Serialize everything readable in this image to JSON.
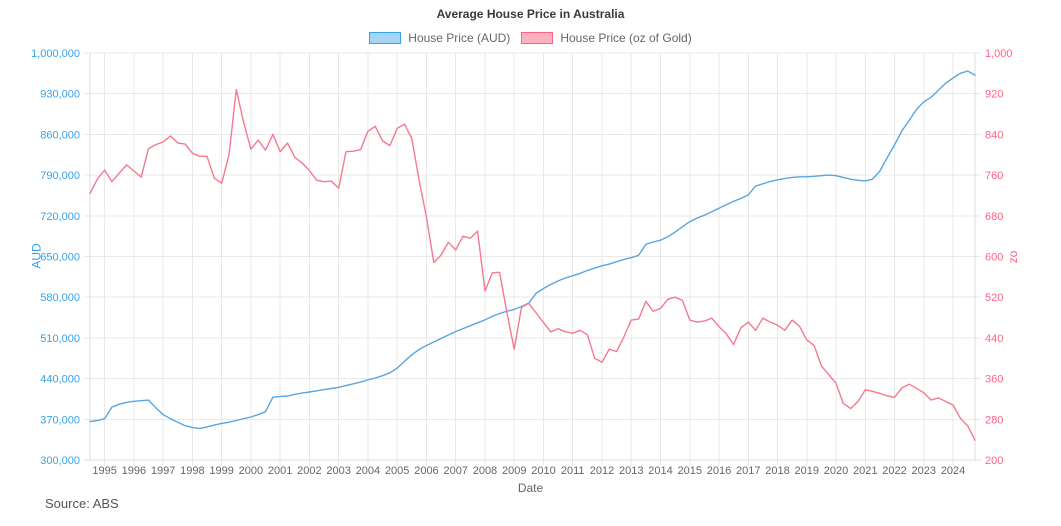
{
  "page": {
    "source_note": "Source: ABS"
  },
  "chart_data": {
    "type": "line",
    "title": "Average House Price in Australia",
    "legend_position": "top",
    "grid": true,
    "x_axis": {
      "title": "Date",
      "tick_start_year": 1995,
      "tick_end_year": 2024
    },
    "y_axis_left": {
      "title": "AUD",
      "min": 300000,
      "max": 1000000,
      "step": 70000,
      "color": "#36A2EB"
    },
    "y_axis_right": {
      "title": "oz",
      "min": 200,
      "max": 1000,
      "step": 80,
      "color": "#FF6384"
    },
    "x_start": 1994.5,
    "x_step": 0.25,
    "series": [
      {
        "name": "House Price (AUD)",
        "axis": "left",
        "color": "#36A2EB",
        "line_color": "#58a6e0",
        "swatch_fill": "rgba(54,162,235,0.45)",
        "values": [
          366000,
          368000,
          371000,
          391000,
          396000,
          399000,
          401000,
          402000,
          403000,
          390000,
          378000,
          371000,
          365000,
          359000,
          356000,
          354000,
          357000,
          360000,
          363000,
          365000,
          368000,
          371000,
          374000,
          378000,
          383000,
          408000,
          409000,
          410000,
          413000,
          415000,
          417000,
          419000,
          421000,
          423000,
          425000,
          428000,
          431000,
          434000,
          438000,
          441000,
          445000,
          450000,
          458000,
          470000,
          481000,
          490000,
          497000,
          503000,
          509000,
          515000,
          521000,
          526000,
          531000,
          536000,
          541000,
          547000,
          552000,
          556000,
          559000,
          564000,
          570000,
          587000,
          595000,
          602000,
          608000,
          613000,
          617000,
          621000,
          626000,
          630000,
          634000,
          637000,
          641000,
          645000,
          648000,
          652000,
          671000,
          675000,
          678000,
          684000,
          692000,
          701000,
          710000,
          716000,
          721000,
          727000,
          733000,
          739000,
          745000,
          750000,
          756000,
          771000,
          775000,
          779000,
          782000,
          784000,
          786000,
          787000,
          787000,
          788000,
          789000,
          790000,
          789000,
          786000,
          783000,
          781000,
          780000,
          783000,
          797000,
          820000,
          842000,
          866000,
          884000,
          903000,
          916000,
          924000,
          936000,
          948000,
          957000,
          965000,
          969000,
          962000
        ]
      },
      {
        "name": "House Price (oz of Gold)",
        "axis": "right",
        "color": "#FF6384",
        "line_color": "#f5798f",
        "swatch_fill": "rgba(255,99,132,0.5)",
        "values": [
          724,
          752,
          770,
          747,
          764,
          780,
          768,
          756,
          812,
          820,
          825,
          837,
          823,
          821,
          803,
          797,
          797,
          754,
          744,
          800,
          928,
          864,
          811,
          829,
          809,
          840,
          806,
          823,
          795,
          784,
          769,
          750,
          747,
          748,
          734,
          806,
          807,
          810,
          846,
          856,
          827,
          818,
          852,
          860,
          832,
          750,
          678,
          588,
          603,
          628,
          613,
          640,
          636,
          650,
          532,
          568,
          569,
          490,
          418,
          500,
          508,
          489,
          470,
          452,
          458,
          452,
          449,
          455,
          446,
          400,
          392,
          418,
          413,
          442,
          475,
          477,
          512,
          492,
          498,
          516,
          520,
          514,
          475,
          471,
          473,
          479,
          462,
          448,
          427,
          460,
          471,
          455,
          479,
          471,
          465,
          455,
          475,
          463,
          436,
          425,
          385,
          368,
          351,
          311,
          301,
          315,
          338,
          335,
          331,
          326,
          323,
          342,
          349,
          341,
          332,
          318,
          322,
          315,
          308,
          282,
          267,
          239
        ]
      }
    ]
  }
}
